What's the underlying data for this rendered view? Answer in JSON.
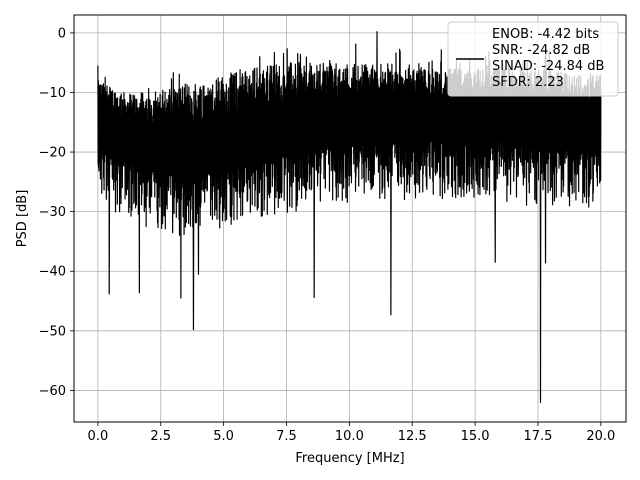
{
  "chart_data": {
    "type": "line",
    "title": "",
    "xlabel": "Frequency [MHz]",
    "ylabel": "PSD [dB]",
    "xlim": [
      -0.95,
      21.0
    ],
    "ylim": [
      -65.3,
      3.0
    ],
    "xticks": [
      0.0,
      2.5,
      5.0,
      7.5,
      10.0,
      12.5,
      15.0,
      17.5,
      20.0
    ],
    "xtick_labels": [
      "0.0",
      "2.5",
      "5.0",
      "7.5",
      "10.0",
      "12.5",
      "15.0",
      "17.5",
      "20.0"
    ],
    "yticks": [
      0,
      -10,
      -20,
      -30,
      -40,
      -50,
      -60
    ],
    "ytick_labels": [
      "0",
      "−10",
      "−20",
      "−30",
      "−40",
      "−50",
      "−60"
    ],
    "grid": true,
    "legend_position": "top-right",
    "legend_lines": [
      "ENOB: -4.42 bits",
      "SNR: -24.82 dB",
      "SINAD: -24.84 dB",
      "SFDR: 2.23"
    ],
    "series": [
      {
        "color": "#000000",
        "x_range": [
          0.0,
          20.0
        ],
        "band_start": [
          -15,
          -18,
          -20,
          -21,
          -21,
          -20,
          -19,
          -18,
          -17,
          -16,
          -16,
          -15,
          -15,
          -15,
          -15,
          -15,
          -15,
          -16,
          -16,
          -17,
          -17
        ],
        "band_end": [
          -8,
          -10,
          -10,
          -9,
          -8,
          -7,
          -6,
          -5,
          -5,
          -5,
          -5,
          -5,
          -6,
          -6,
          -6,
          -6,
          -6,
          -6,
          -6,
          -7,
          -7
        ],
        "notable_values": [
          {
            "x": 0.0,
            "y": -5.5
          },
          {
            "x": 0.45,
            "y": -43.8
          },
          {
            "x": 1.65,
            "y": -43.6
          },
          {
            "x": 3.3,
            "y": -44.5
          },
          {
            "x": 3.8,
            "y": -49.8
          },
          {
            "x": 4.0,
            "y": -40.5
          },
          {
            "x": 8.6,
            "y": -44.4
          },
          {
            "x": 11.1,
            "y": 0.2
          },
          {
            "x": 11.65,
            "y": -47.3
          },
          {
            "x": 17.6,
            "y": -62.0
          },
          {
            "x": 17.8,
            "y": -38.6
          },
          {
            "x": 15.8,
            "y": -38.5
          }
        ]
      }
    ]
  }
}
